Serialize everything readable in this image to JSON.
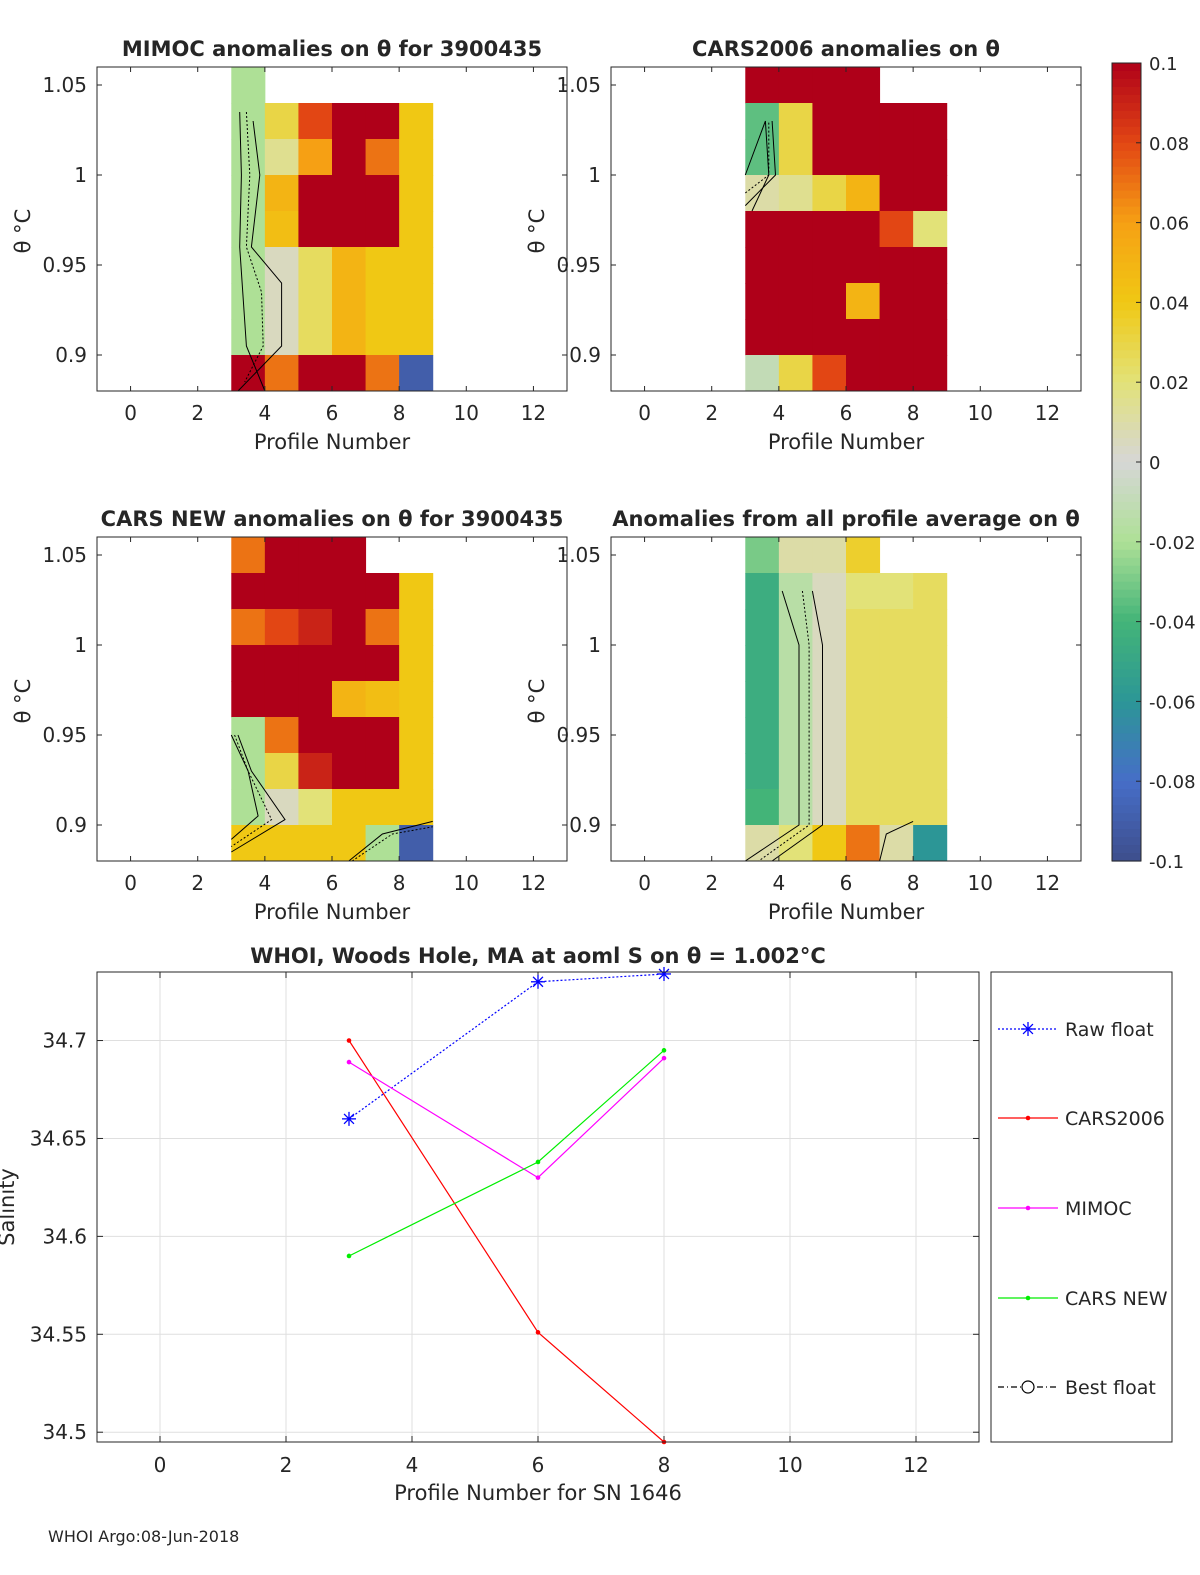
{
  "chart_data": [
    {
      "type": "heatmap",
      "title": "MIMOC anomalies on θ  for 3900435",
      "xlabel": "Profile Number",
      "ylabel": "θ °C",
      "xlim": [
        -1,
        13
      ],
      "ylim": [
        0.88,
        1.06
      ],
      "xticks": [
        0,
        2,
        4,
        6,
        8,
        10,
        12
      ],
      "yticks": [
        "0.9",
        "0.95",
        "1",
        "1.05"
      ],
      "profiles": [
        3,
        4,
        5,
        6,
        7,
        8
      ],
      "levels": [
        1.055,
        1.03,
        1.01,
        0.99,
        0.97,
        0.95,
        0.93,
        0.91,
        0.89
      ],
      "values": [
        [
          -0.02,
          null,
          null,
          null,
          null,
          null
        ],
        [
          -0.02,
          0.03,
          0.08,
          0.1,
          0.1,
          0.04
        ],
        [
          -0.02,
          0.015,
          0.06,
          0.1,
          0.07,
          0.04
        ],
        [
          -0.02,
          0.05,
          0.1,
          0.1,
          0.1,
          0.04
        ],
        [
          -0.02,
          0.045,
          0.1,
          0.1,
          0.1,
          0.04
        ],
        [
          -0.02,
          0.005,
          0.025,
          0.05,
          0.04,
          0.04
        ],
        [
          -0.02,
          0.005,
          0.025,
          0.05,
          0.04,
          0.04
        ],
        [
          -0.02,
          0.005,
          0.025,
          0.05,
          0.04,
          0.04
        ],
        [
          0.1,
          0.07,
          0.1,
          0.1,
          0.07,
          -0.09
        ]
      ]
    },
    {
      "type": "heatmap",
      "title": "CARS2006 anomalies on θ",
      "xlabel": "Profile Number",
      "ylabel": "θ °C",
      "xlim": [
        -1,
        13
      ],
      "ylim": [
        0.88,
        1.06
      ],
      "xticks": [
        0,
        2,
        4,
        6,
        8,
        10,
        12
      ],
      "yticks": [
        "0.9",
        "0.95",
        "1",
        "1.05"
      ],
      "profiles": [
        3,
        4,
        5,
        6,
        7,
        8
      ],
      "levels": [
        1.055,
        1.03,
        1.01,
        0.99,
        0.97,
        0.95,
        0.93,
        0.91,
        0.89
      ],
      "values": [
        [
          0.1,
          0.1,
          0.1,
          0.1,
          null,
          null
        ],
        [
          -0.035,
          0.03,
          0.1,
          0.1,
          0.1,
          0.1
        ],
        [
          -0.035,
          0.03,
          0.1,
          0.1,
          0.1,
          0.1
        ],
        [
          0.01,
          0.015,
          0.03,
          0.05,
          0.1,
          0.1
        ],
        [
          0.1,
          0.1,
          0.1,
          0.1,
          0.08,
          0.02
        ],
        [
          0.1,
          0.1,
          0.1,
          0.1,
          0.1,
          0.1
        ],
        [
          0.1,
          0.1,
          0.1,
          0.05,
          0.1,
          0.1
        ],
        [
          0.1,
          0.1,
          0.1,
          0.1,
          0.1,
          0.1
        ],
        [
          -0.01,
          0.03,
          0.08,
          0.1,
          0.1,
          0.1
        ]
      ]
    },
    {
      "type": "heatmap",
      "title": "CARS NEW anomalies on θ for 3900435",
      "xlabel": "Profile Number",
      "ylabel": "θ °C",
      "xlim": [
        -1,
        13
      ],
      "ylim": [
        0.88,
        1.06
      ],
      "xticks": [
        0,
        2,
        4,
        6,
        8,
        10,
        12
      ],
      "yticks": [
        "0.9",
        "0.95",
        "1",
        "1.05"
      ],
      "profiles": [
        3,
        4,
        5,
        6,
        7,
        8
      ],
      "levels": [
        1.055,
        1.03,
        1.01,
        0.99,
        0.97,
        0.95,
        0.93,
        0.91,
        0.89
      ],
      "values": [
        [
          0.07,
          0.1,
          0.1,
          0.1,
          null,
          null
        ],
        [
          0.1,
          0.1,
          0.1,
          0.1,
          0.1,
          0.04
        ],
        [
          0.07,
          0.08,
          0.09,
          0.1,
          0.07,
          0.04
        ],
        [
          0.1,
          0.1,
          0.1,
          0.1,
          0.1,
          0.04
        ],
        [
          0.1,
          0.1,
          0.1,
          0.05,
          0.045,
          0.04
        ],
        [
          -0.02,
          0.07,
          0.1,
          0.1,
          0.1,
          0.04
        ],
        [
          -0.02,
          0.03,
          0.09,
          0.1,
          0.1,
          0.04
        ],
        [
          -0.02,
          0.005,
          0.02,
          0.04,
          0.04,
          0.04
        ],
        [
          0.04,
          0.04,
          0.04,
          0.04,
          -0.02,
          -0.09
        ]
      ]
    },
    {
      "type": "heatmap",
      "title": "Anomalies from all profile average on θ",
      "xlabel": "Profile Number",
      "ylabel": "θ °C",
      "xlim": [
        -1,
        13
      ],
      "ylim": [
        0.88,
        1.06
      ],
      "xticks": [
        0,
        2,
        4,
        6,
        8,
        10,
        12
      ],
      "yticks": [
        "0.9",
        "0.95",
        "1",
        "1.05"
      ],
      "profiles": [
        3,
        4,
        5,
        6,
        7,
        8
      ],
      "levels": [
        1.055,
        1.03,
        1.01,
        0.99,
        0.97,
        0.95,
        0.93,
        0.91,
        0.89
      ],
      "values": [
        [
          -0.03,
          0.01,
          0.01,
          0.035,
          null,
          null
        ],
        [
          -0.045,
          -0.015,
          0.005,
          0.02,
          0.02,
          0.025
        ],
        [
          -0.045,
          -0.015,
          0.005,
          0.025,
          0.025,
          0.025
        ],
        [
          -0.045,
          -0.015,
          0.005,
          0.025,
          0.025,
          0.025
        ],
        [
          -0.045,
          -0.015,
          0.005,
          0.025,
          0.025,
          0.025
        ],
        [
          -0.045,
          -0.015,
          0.005,
          0.025,
          0.025,
          0.025
        ],
        [
          -0.045,
          -0.015,
          0.005,
          0.025,
          0.025,
          0.025
        ],
        [
          -0.04,
          -0.015,
          0.005,
          0.025,
          0.025,
          0.025
        ],
        [
          0.01,
          0.02,
          0.04,
          0.07,
          0.01,
          -0.06
        ]
      ]
    },
    {
      "type": "line",
      "title": "WHOI, Woods Hole, MA at aoml S on θ = 1.002°C",
      "xlabel": "Profile Number for SN 1646",
      "ylabel": "Salinity",
      "xlim": [
        -1,
        13
      ],
      "ylim": [
        34.495,
        34.735
      ],
      "xticks": [
        0,
        2,
        4,
        6,
        8,
        10,
        12
      ],
      "yticks": [
        "34.5",
        "34.55",
        "34.6",
        "34.65",
        "34.7"
      ],
      "grid": true,
      "legend_position": "outside-right",
      "series": [
        {
          "name": "Raw float",
          "color": "#0000ff",
          "style": "dotted",
          "marker": "asterisk",
          "x": [
            3,
            6,
            8
          ],
          "y": [
            34.66,
            34.73,
            34.734
          ]
        },
        {
          "name": "CARS2006",
          "color": "#ff0000",
          "style": "solid",
          "marker": "dot",
          "x": [
            3,
            6,
            8
          ],
          "y": [
            34.7,
            34.551,
            34.495
          ]
        },
        {
          "name": "MIMOC",
          "color": "#ff00ff",
          "style": "solid",
          "marker": "dot",
          "x": [
            3,
            6,
            8
          ],
          "y": [
            34.689,
            34.63,
            34.691
          ]
        },
        {
          "name": "CARS NEW",
          "color": "#00ee00",
          "style": "solid",
          "marker": "dot",
          "x": [
            3,
            6,
            8
          ],
          "y": [
            34.59,
            34.638,
            34.695
          ]
        },
        {
          "name": "Best float",
          "color": "#000000",
          "style": "dashdot",
          "marker": "circle",
          "x": [],
          "y": []
        }
      ]
    }
  ],
  "colorbar": {
    "range": [
      -0.1,
      0.1
    ],
    "tick_labels": [
      "0.1",
      "0.08",
      "0.06",
      "0.04",
      "0.02",
      "0",
      "-0.02",
      "-0.04",
      "-0.06",
      "-0.08",
      "-0.1"
    ]
  },
  "footer": "WHOI Argo:08-Jun-2018"
}
